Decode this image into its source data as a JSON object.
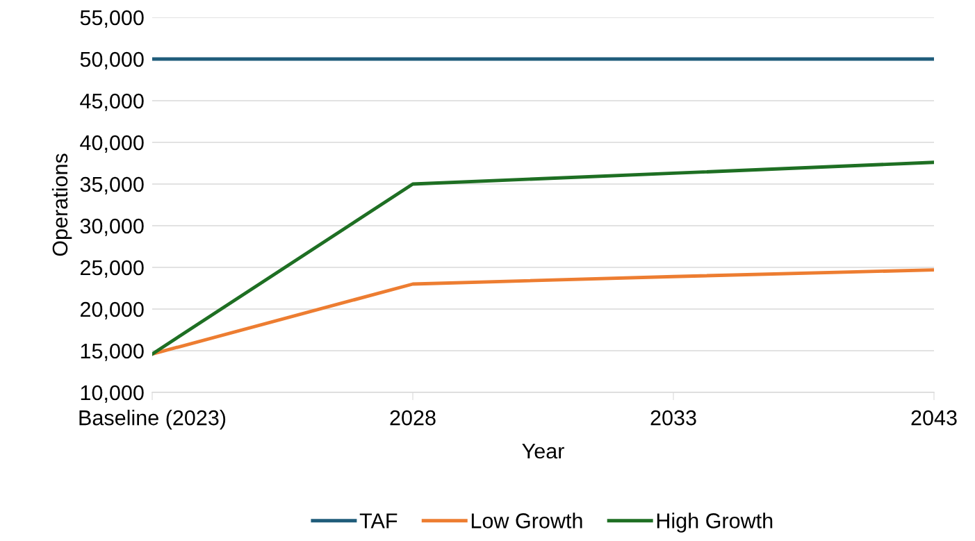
{
  "chart_data": {
    "type": "line",
    "xlabel": "Year",
    "ylabel": "Operations",
    "categories": [
      "Baseline (2023)",
      "2028",
      "2033",
      "2043"
    ],
    "series": [
      {
        "name": "TAF",
        "color": "#1f5c7a",
        "values": [
          50000,
          50000,
          50000,
          50000
        ]
      },
      {
        "name": "Low Growth",
        "color": "#ed7d31",
        "values": [
          14600,
          23000,
          23900,
          24700
        ]
      },
      {
        "name": "High Growth",
        "color": "#1e6f23",
        "values": [
          14600,
          35000,
          36300,
          37600
        ]
      }
    ],
    "ylim": [
      10000,
      55000
    ],
    "yticks": [
      {
        "value": 10000,
        "label": "10,000"
      },
      {
        "value": 15000,
        "label": "15,000"
      },
      {
        "value": 20000,
        "label": "20,000"
      },
      {
        "value": 25000,
        "label": "25,000"
      },
      {
        "value": 30000,
        "label": "30,000"
      },
      {
        "value": 35000,
        "label": "35,000"
      },
      {
        "value": 40000,
        "label": "40,000"
      },
      {
        "value": 45000,
        "label": "45,000"
      },
      {
        "value": 50000,
        "label": "50,000"
      },
      {
        "value": 55000,
        "label": "55,000"
      }
    ],
    "grid": "y",
    "legend": "bottom",
    "marker": "none",
    "line_style": "solid"
  }
}
